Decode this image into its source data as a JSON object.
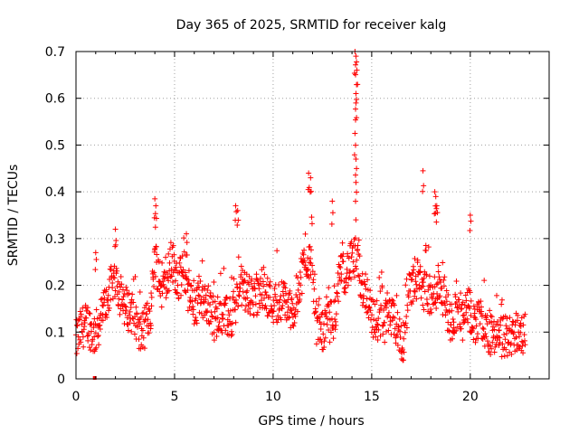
{
  "chart_data": {
    "type": "scatter",
    "title": "Day 365 of 2025, SRMTID for receiver kalg",
    "xlabel": "GPS time / hours",
    "ylabel": "SRMTID / TECUs",
    "xlim": [
      0,
      24
    ],
    "ylim": [
      0,
      0.7
    ],
    "xticks": [
      0,
      5,
      10,
      15,
      20
    ],
    "yticks": [
      0,
      0.1,
      0.2,
      0.3,
      0.4,
      0.5,
      0.6,
      0.7
    ],
    "grid": true,
    "marker": "plus",
    "series_color": "#ff0000",
    "series": [
      {
        "name": "SRMTID",
        "trend": [
          [
            0.0,
            0.08
          ],
          [
            0.3,
            0.11
          ],
          [
            0.6,
            0.12
          ],
          [
            0.9,
            0.09
          ],
          [
            1.2,
            0.12
          ],
          [
            1.5,
            0.16
          ],
          [
            1.8,
            0.2
          ],
          [
            2.0,
            0.22
          ],
          [
            2.3,
            0.17
          ],
          [
            2.6,
            0.15
          ],
          [
            2.9,
            0.14
          ],
          [
            3.2,
            0.09
          ],
          [
            3.5,
            0.11
          ],
          [
            3.8,
            0.15
          ],
          [
            4.0,
            0.27
          ],
          [
            4.3,
            0.19
          ],
          [
            4.6,
            0.22
          ],
          [
            4.9,
            0.25
          ],
          [
            5.2,
            0.21
          ],
          [
            5.5,
            0.23
          ],
          [
            5.8,
            0.16
          ],
          [
            6.1,
            0.16
          ],
          [
            6.4,
            0.17
          ],
          [
            6.7,
            0.16
          ],
          [
            7.0,
            0.12
          ],
          [
            7.3,
            0.15
          ],
          [
            7.6,
            0.13
          ],
          [
            8.0,
            0.13
          ],
          [
            8.3,
            0.2
          ],
          [
            8.6,
            0.19
          ],
          [
            8.9,
            0.17
          ],
          [
            9.2,
            0.17
          ],
          [
            9.5,
            0.2
          ],
          [
            9.8,
            0.17
          ],
          [
            10.1,
            0.16
          ],
          [
            10.4,
            0.17
          ],
          [
            10.7,
            0.16
          ],
          [
            11.0,
            0.14
          ],
          [
            11.3,
            0.2
          ],
          [
            11.6,
            0.25
          ],
          [
            11.9,
            0.26
          ],
          [
            12.2,
            0.12
          ],
          [
            12.5,
            0.1
          ],
          [
            12.8,
            0.12
          ],
          [
            13.1,
            0.13
          ],
          [
            13.4,
            0.22
          ],
          [
            13.7,
            0.23
          ],
          [
            14.0,
            0.25
          ],
          [
            14.2,
            0.26
          ],
          [
            14.5,
            0.2
          ],
          [
            14.8,
            0.18
          ],
          [
            15.1,
            0.12
          ],
          [
            15.4,
            0.13
          ],
          [
            15.7,
            0.12
          ],
          [
            16.0,
            0.13
          ],
          [
            16.3,
            0.1
          ],
          [
            16.6,
            0.08
          ],
          [
            16.9,
            0.18
          ],
          [
            17.2,
            0.22
          ],
          [
            17.5,
            0.2
          ],
          [
            17.8,
            0.18
          ],
          [
            18.1,
            0.17
          ],
          [
            18.4,
            0.21
          ],
          [
            18.7,
            0.17
          ],
          [
            19.0,
            0.12
          ],
          [
            19.3,
            0.15
          ],
          [
            19.6,
            0.12
          ],
          [
            19.9,
            0.15
          ],
          [
            20.2,
            0.12
          ],
          [
            20.5,
            0.13
          ],
          [
            20.8,
            0.1
          ],
          [
            21.1,
            0.09
          ],
          [
            21.4,
            0.08
          ],
          [
            21.7,
            0.09
          ],
          [
            22.0,
            0.09
          ],
          [
            22.3,
            0.1
          ],
          [
            22.6,
            0.1
          ],
          [
            22.8,
            0.1
          ]
        ],
        "spikes": [
          [
            1.0,
            0.27
          ],
          [
            2.0,
            0.32
          ],
          [
            4.0,
            0.385
          ],
          [
            4.05,
            0.37
          ],
          [
            5.6,
            0.31
          ],
          [
            8.1,
            0.37
          ],
          [
            8.2,
            0.36
          ],
          [
            11.8,
            0.44
          ],
          [
            11.9,
            0.43
          ],
          [
            13.0,
            0.38
          ],
          [
            14.15,
            0.7
          ],
          [
            14.2,
            0.69
          ],
          [
            14.25,
            0.66
          ],
          [
            14.2,
            0.61
          ],
          [
            14.2,
            0.59
          ],
          [
            14.15,
            0.525
          ],
          [
            14.2,
            0.47
          ],
          [
            14.2,
            0.42
          ],
          [
            17.6,
            0.445
          ],
          [
            18.2,
            0.4
          ],
          [
            18.25,
            0.39
          ],
          [
            18.3,
            0.37
          ],
          [
            20.0,
            0.35
          ]
        ],
        "outlier": [
          0.95,
          0.0
        ]
      }
    ]
  }
}
